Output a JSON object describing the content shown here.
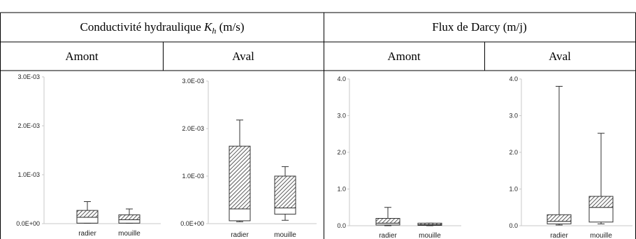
{
  "table": {
    "header_kh_prefix": "Conductivité hydraulique ",
    "header_kh_symbol": "K",
    "header_kh_sub": "h",
    "header_kh_unit": " (m/s)",
    "header_darcy": "Flux de Darcy (m/j)",
    "subheaders": [
      "Amont",
      "Aval",
      "Amont",
      "Aval"
    ]
  },
  "chart_data": [
    {
      "type": "box",
      "ylim": [
        0,
        0.003
      ],
      "yticks": [
        0,
        0.001,
        0.002,
        0.003
      ],
      "ytick_labels": [
        "0.0E+00",
        "1.0E-03",
        "2.0E-03",
        "3.0E-03"
      ],
      "categories": [
        "radier",
        "mouille"
      ],
      "boxes": [
        {
          "min": 1e-05,
          "q1": 1e-05,
          "median": 0.00013,
          "q3": 0.00027,
          "max": 0.00045
        },
        {
          "min": 1e-05,
          "q1": 1e-05,
          "median": 8e-05,
          "q3": 0.00018,
          "max": 0.0003
        }
      ]
    },
    {
      "type": "box",
      "ylim": [
        0,
        0.003
      ],
      "yticks": [
        0,
        0.001,
        0.002,
        0.003
      ],
      "ytick_labels": [
        "0.0E+00",
        "1.0E-03",
        "2.0E-03",
        "3.0E-03"
      ],
      "categories": [
        "radier",
        "mouille"
      ],
      "boxes": [
        {
          "min": 4e-05,
          "q1": 6e-05,
          "median": 0.00031,
          "q3": 0.00163,
          "max": 0.00218
        },
        {
          "min": 7e-05,
          "q1": 0.0002,
          "median": 0.00033,
          "q3": 0.001,
          "max": 0.0012
        }
      ]
    },
    {
      "type": "box",
      "ylim": [
        0,
        4
      ],
      "yticks": [
        0,
        1,
        2,
        3,
        4
      ],
      "ytick_labels": [
        "0.0",
        "1.0",
        "2.0",
        "3.0",
        "4.0"
      ],
      "categories": [
        "radier",
        "mouille"
      ],
      "boxes": [
        {
          "min": 0.0,
          "q1": 0.02,
          "median": 0.07,
          "q3": 0.2,
          "max": 0.5
        },
        {
          "min": 0.0,
          "q1": 0.01,
          "median": 0.03,
          "q3": 0.07,
          "max": 0.07
        }
      ]
    },
    {
      "type": "box",
      "ylim": [
        0,
        4
      ],
      "yticks": [
        0,
        1,
        2,
        3,
        4
      ],
      "ytick_labels": [
        "0.0",
        "1.0",
        "2.0",
        "3.0",
        "4.0"
      ],
      "categories": [
        "radier",
        "mouille"
      ],
      "boxes": [
        {
          "min": 0.02,
          "q1": 0.05,
          "median": 0.12,
          "q3": 0.3,
          "max": 3.8
        },
        {
          "min": 0.05,
          "q1": 0.1,
          "median": 0.5,
          "q3": 0.8,
          "max": 2.52
        }
      ]
    }
  ]
}
